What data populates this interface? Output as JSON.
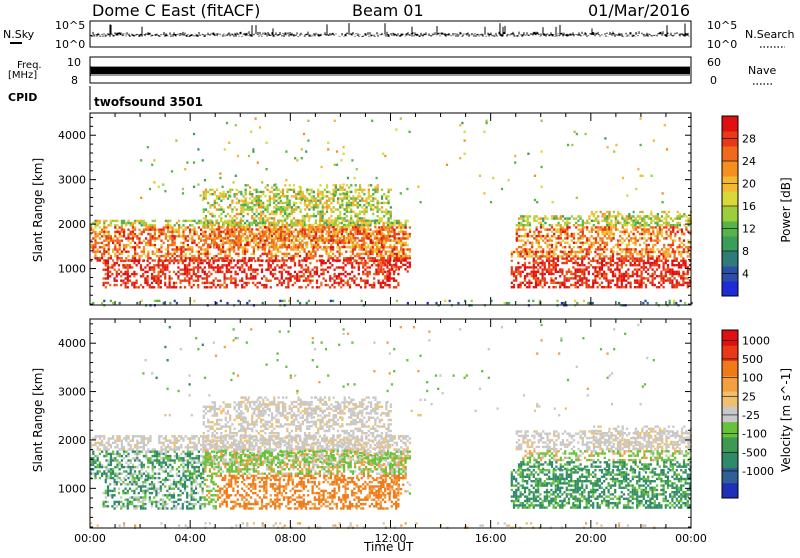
{
  "header": {
    "station": "Dome C East (fitACF)",
    "beam": "Beam 01",
    "date": "01/Mar/2016"
  },
  "top_panels": {
    "nsky_label": "N.Sky",
    "nsky_ticks": [
      "10^5",
      "10^0"
    ],
    "nsearch_label": "N.Search",
    "nsearch_ticks": [
      "10^5",
      "10^0"
    ],
    "freq_label_1": "Freq.",
    "freq_label_2": "[MHz]",
    "freq_ticks": [
      "10",
      "8"
    ],
    "nave_label": "Nave",
    "nave_ticks": [
      "60",
      "0"
    ],
    "cpid_label": "CPID",
    "cpid_text": "twofsound 3501"
  },
  "chart_data": [
    {
      "type": "heatmap",
      "title": "",
      "xlabel": "Time UT",
      "ylabel": "Slant Range [km]",
      "xlim": [
        0,
        24
      ],
      "ylim": [
        180,
        4500
      ],
      "x_tick_labels": [
        "00:00",
        "04:00",
        "08:00",
        "12:00",
        "16:00",
        "20:00",
        "00:00"
      ],
      "y_tick_labels": [
        "1000",
        "2000",
        "3000",
        "4000"
      ],
      "colorbar": {
        "label": "Power [dB]",
        "tick_labels": [
          "28",
          "24",
          "20",
          "16",
          "12",
          "8",
          "4"
        ],
        "range": [
          0,
          30
        ],
        "colors": [
          "#1e2bd6",
          "#2d4ea8",
          "#2f7a7a",
          "#3a9e5a",
          "#58b24a",
          "#9ccd3a",
          "#d8d838",
          "#f2b830",
          "#f59020",
          "#f06a1c",
          "#e83a16",
          "#e01010"
        ]
      }
    },
    {
      "type": "heatmap",
      "title": "",
      "xlabel": "Time UT",
      "ylabel": "Slant Range [km]",
      "xlim": [
        0,
        24
      ],
      "ylim": [
        180,
        4500
      ],
      "x_tick_labels": [
        "00:00",
        "04:00",
        "08:00",
        "12:00",
        "16:00",
        "20:00",
        "00:00"
      ],
      "y_tick_labels": [
        "1000",
        "2000",
        "3000",
        "4000"
      ],
      "colorbar": {
        "label": "Velocity [m s^-1]",
        "tick_labels": [
          "1000",
          "500",
          "100",
          "25",
          "-25",
          "-100",
          "-500",
          "-1000"
        ],
        "colors": [
          "#1f2fb8",
          "#2f5f95",
          "#2f8a6a",
          "#3e9a52",
          "#67c23a",
          "#c8c8c8",
          "#f0c070",
          "#f2a040",
          "#f07a18",
          "#e83a16",
          "#e01010"
        ]
      }
    }
  ],
  "x_axis_title": "Time UT"
}
